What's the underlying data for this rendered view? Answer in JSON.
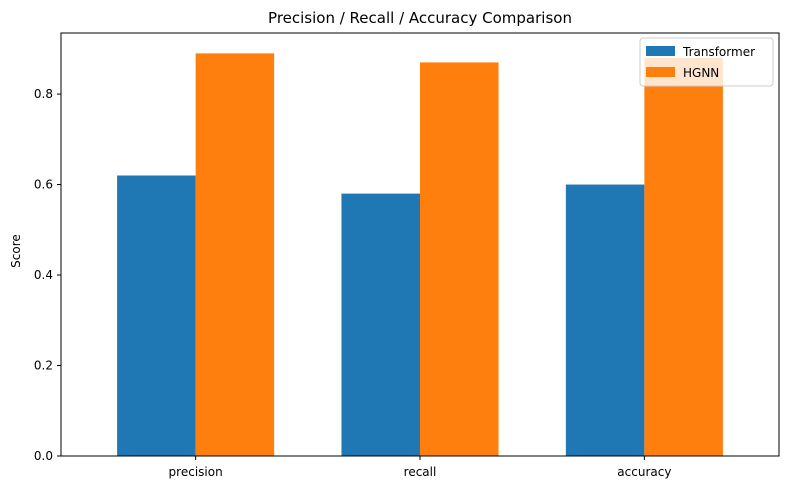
{
  "chart_data": {
    "type": "bar",
    "title": "Precision / Recall / Accuracy Comparison",
    "xlabel": "",
    "ylabel": "Score",
    "categories": [
      "precision",
      "recall",
      "accuracy"
    ],
    "series": [
      {
        "name": "Transformer",
        "values": [
          0.62,
          0.58,
          0.6
        ],
        "color": "#1f77b4"
      },
      {
        "name": "HGNN",
        "values": [
          0.89,
          0.87,
          0.88
        ],
        "color": "#ff7f0e"
      }
    ],
    "ylim": [
      0,
      0.935
    ],
    "yticks": [
      0.0,
      0.2,
      0.4,
      0.6,
      0.8
    ],
    "ytick_labels": [
      "0.0",
      "0.2",
      "0.4",
      "0.6",
      "0.8"
    ],
    "grid": false,
    "legend_position": "top-right"
  }
}
